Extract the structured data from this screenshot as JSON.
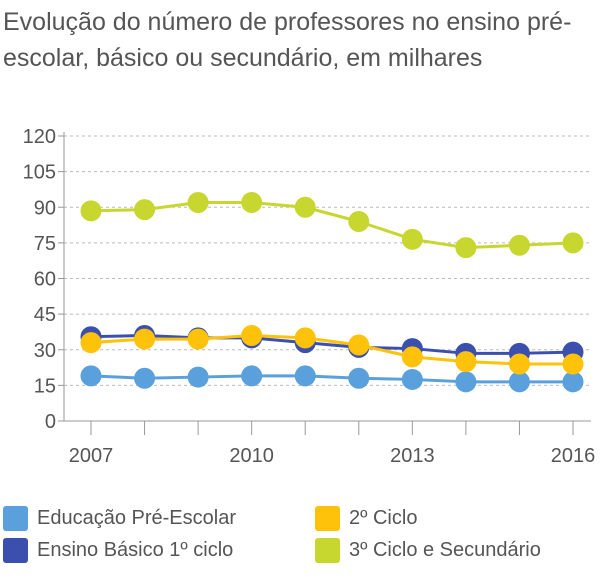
{
  "chart_data": {
    "type": "line",
    "title": "Evolução do número de professores no ensino pré-escolar, básico ou secundário, em milhares",
    "x": [
      2007,
      2008,
      2009,
      2010,
      2011,
      2012,
      2013,
      2014,
      2015,
      2016
    ],
    "x_tick_labels": [
      "2007",
      "2010",
      "2013",
      "2016"
    ],
    "y_ticks": [
      0,
      15,
      30,
      45,
      60,
      75,
      90,
      105,
      120
    ],
    "ylim": [
      0,
      120
    ],
    "xlabel": "",
    "ylabel": "",
    "grid": "horizontal dashed",
    "legend_position": "bottom",
    "series": [
      {
        "name": "Educação Pré-Escolar",
        "color": "#5aa0dc",
        "values": [
          19,
          18,
          18.5,
          19,
          19,
          18,
          17.5,
          16.5,
          16.5,
          16.5
        ]
      },
      {
        "name": "Ensino Básico 1º ciclo",
        "color": "#3a4fae",
        "values": [
          35.5,
          36,
          35,
          35,
          33,
          31,
          30.5,
          28.5,
          28.5,
          29
        ]
      },
      {
        "name": "2º Ciclo",
        "color": "#ffc20a",
        "values": [
          33,
          34.5,
          34.5,
          36,
          35,
          32,
          27,
          25,
          24,
          24
        ]
      },
      {
        "name": "3º Ciclo e Secundário",
        "color": "#c8d630",
        "values": [
          88.5,
          89,
          92,
          92,
          90,
          84,
          76.5,
          73,
          74,
          75
        ]
      }
    ]
  }
}
